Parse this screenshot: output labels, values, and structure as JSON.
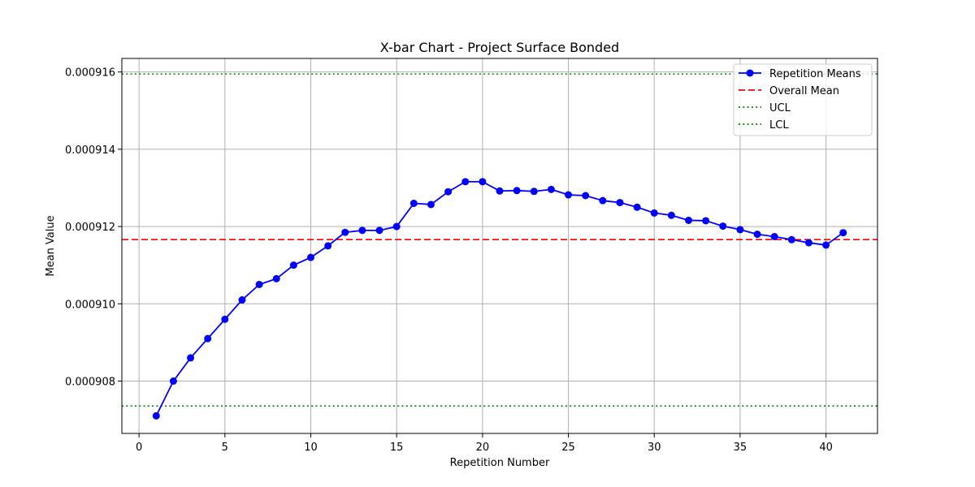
{
  "chart_data": {
    "type": "line",
    "title": "X-bar Chart - Project Surface Bonded",
    "xlabel": "Repetition Number",
    "ylabel": "Mean Value",
    "xlim": [
      -1,
      43
    ],
    "ylim": [
      0.000906645,
      0.00091635
    ],
    "x_ticks": [
      0,
      5,
      10,
      15,
      20,
      25,
      30,
      35,
      40
    ],
    "x_tick_labels": [
      "0",
      "5",
      "10",
      "15",
      "20",
      "25",
      "30",
      "35",
      "40"
    ],
    "y_ticks": [
      0.000908,
      0.00091,
      0.000912,
      0.000914,
      0.000916
    ],
    "y_tick_labels": [
      "0.000908",
      "0.000910",
      "0.000912",
      "0.000914",
      "0.000916"
    ],
    "grid": true,
    "legend_position": "upper right",
    "series": [
      {
        "name": "Repetition Means",
        "color": "#0000ff",
        "style": "solid",
        "marker": "circle",
        "x": [
          1,
          2,
          3,
          4,
          5,
          6,
          7,
          8,
          9,
          10,
          11,
          12,
          13,
          14,
          15,
          16,
          17,
          18,
          19,
          20,
          21,
          22,
          23,
          24,
          25,
          26,
          27,
          28,
          29,
          30,
          31,
          32,
          33,
          34,
          35,
          36,
          37,
          38,
          39,
          40,
          41
        ],
        "values": [
          0.0009071,
          0.000908,
          0.0009086,
          0.0009091,
          0.0009096,
          0.0009101,
          0.0009105,
          0.00091065,
          0.000911,
          0.0009112,
          0.0009115,
          0.00091185,
          0.0009119,
          0.0009119,
          0.000912,
          0.0009126,
          0.00091257,
          0.0009129,
          0.00091316,
          0.00091316,
          0.00091292,
          0.00091293,
          0.00091291,
          0.00091296,
          0.00091282,
          0.0009128,
          0.00091267,
          0.00091262,
          0.0009125,
          0.00091235,
          0.00091229,
          0.00091216,
          0.00091215,
          0.00091201,
          0.00091192,
          0.0009118,
          0.00091174,
          0.00091166,
          0.00091158,
          0.00091152,
          0.00091184
        ]
      }
    ],
    "reference_lines": [
      {
        "name": "Overall Mean",
        "value": 0.000911662,
        "color": "#ff0000",
        "style": "dashed"
      },
      {
        "name": "UCL",
        "value": 0.000915948,
        "color": "#008000",
        "style": "dotted"
      },
      {
        "name": "LCL",
        "value": 0.000907355,
        "color": "#008000",
        "style": "dotted"
      }
    ]
  }
}
